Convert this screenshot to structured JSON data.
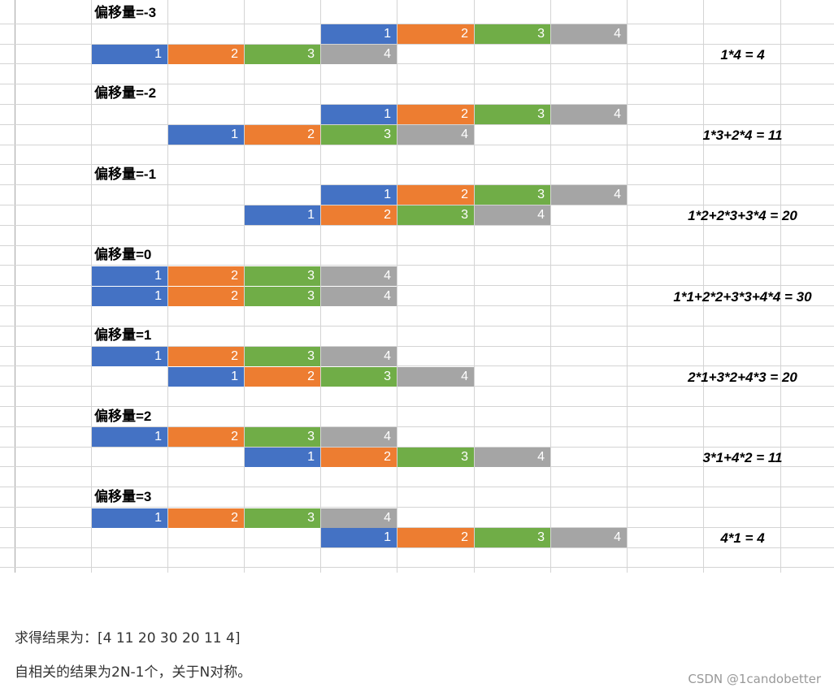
{
  "colors": [
    "#4472c4",
    "#ed7d31",
    "#70ad47",
    "#a5a5a5"
  ],
  "blocks": [
    {
      "label": "偏移量=-3",
      "formula": "1*4 = 4",
      "row_a": {
        "start_col": 3,
        "values": [
          "1",
          "2",
          "3",
          "4"
        ]
      },
      "row_b": {
        "start_col": 0,
        "values": [
          "1",
          "2",
          "3",
          "4"
        ]
      }
    },
    {
      "label": "偏移量=-2",
      "formula": "1*3+2*4 = 11",
      "row_a": {
        "start_col": 3,
        "values": [
          "1",
          "2",
          "3",
          "4"
        ]
      },
      "row_b": {
        "start_col": 1,
        "values": [
          "1",
          "2",
          "3",
          "4"
        ]
      }
    },
    {
      "label": "偏移量=-1",
      "formula": "1*2+2*3+3*4 = 20",
      "row_a": {
        "start_col": 3,
        "values": [
          "1",
          "2",
          "3",
          "4"
        ]
      },
      "row_b": {
        "start_col": 2,
        "values": [
          "1",
          "2",
          "3",
          "4"
        ]
      }
    },
    {
      "label": "偏移量=0",
      "formula": "1*1+2*2+3*3+4*4 = 30",
      "row_a": {
        "start_col": 0,
        "values": [
          "1",
          "2",
          "3",
          "4"
        ]
      },
      "row_b": {
        "start_col": 0,
        "values": [
          "1",
          "2",
          "3",
          "4"
        ]
      }
    },
    {
      "label": "偏移量=1",
      "formula": "2*1+3*2+4*3 = 20",
      "row_a": {
        "start_col": 0,
        "values": [
          "1",
          "2",
          "3",
          "4"
        ]
      },
      "row_b": {
        "start_col": 1,
        "values": [
          "1",
          "2",
          "3",
          "4"
        ]
      }
    },
    {
      "label": "偏移量=2",
      "formula": "3*1+4*2 = 11",
      "row_a": {
        "start_col": 0,
        "values": [
          "1",
          "2",
          "3",
          "4"
        ]
      },
      "row_b": {
        "start_col": 2,
        "values": [
          "1",
          "2",
          "3",
          "4"
        ]
      }
    },
    {
      "label": "偏移量=3",
      "formula": "4*1 = 4",
      "row_a": {
        "start_col": 0,
        "values": [
          "1",
          "2",
          "3",
          "4"
        ]
      },
      "row_b": {
        "start_col": 3,
        "values": [
          "1",
          "2",
          "3",
          "4"
        ]
      }
    }
  ],
  "notes": {
    "result": "求得结果为：[4 11 20 30 20 11 4]",
    "symmetry": "自相关的结果为2N-1个，关于N对称。"
  },
  "watermark": "CSDN @1candobetter"
}
